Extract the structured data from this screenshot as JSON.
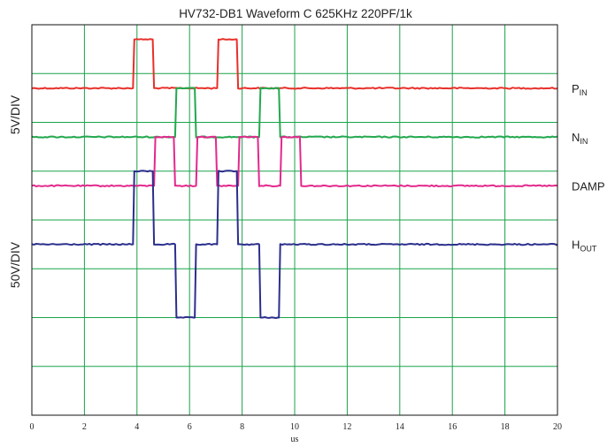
{
  "chart_data": {
    "type": "line",
    "title": "HV732-DB1 Waveform C 625KHz 220PF/1k",
    "xlabel": "us",
    "xlim": [
      0,
      20
    ],
    "x_ticks": [
      "0",
      "2",
      "4",
      "6",
      "8",
      "10",
      "12",
      "14",
      "16",
      "18",
      "20"
    ],
    "grid": true,
    "grid_divisions": {
      "x": 10,
      "y": 8
    },
    "y_scale_labels": [
      {
        "text": "5V/DIV",
        "applies_to": [
          "P_IN",
          "N_IN"
        ]
      },
      {
        "text": "50V/DIV",
        "applies_to": [
          "DAMP",
          "H_OUT"
        ]
      }
    ],
    "y_units": "divisions from top (0 = top, 8 = bottom)",
    "series": [
      {
        "name": "P_IN",
        "label_main": "P",
        "label_sub": "IN",
        "color": "#e8302a",
        "low_div": 1.3,
        "high_div": 0.3,
        "pulses": [
          {
            "level": "high",
            "start": 3.85,
            "end": 4.65
          },
          {
            "level": "high",
            "start": 7.05,
            "end": 7.85
          }
        ]
      },
      {
        "name": "N_IN",
        "label_main": "N",
        "label_sub": "IN",
        "color": "#22a84e",
        "low_div": 2.3,
        "high_div": 1.3,
        "pulses": [
          {
            "level": "high",
            "start": 5.45,
            "end": 6.25
          },
          {
            "level": "high",
            "start": 8.65,
            "end": 9.45
          }
        ]
      },
      {
        "name": "DAMP",
        "label_main": "DAMP",
        "label_sub": "",
        "color": "#e3288c",
        "low_div": 3.3,
        "high_div": 2.3,
        "pulses": [
          {
            "level": "high",
            "start": 4.65,
            "end": 5.45
          },
          {
            "level": "high",
            "start": 6.25,
            "end": 7.05
          },
          {
            "level": "high",
            "start": 7.85,
            "end": 8.65
          },
          {
            "level": "high",
            "start": 9.45,
            "end": 10.25
          }
        ]
      },
      {
        "name": "H_OUT",
        "label_main": "H",
        "label_sub": "OUT",
        "color": "#2b2f8c",
        "low_div": 6.0,
        "mid_div": 4.5,
        "high_div": 3.0,
        "pulses": [
          {
            "level": "high",
            "start": 3.85,
            "end": 4.65
          },
          {
            "level": "low",
            "start": 5.45,
            "end": 6.25
          },
          {
            "level": "high",
            "start": 7.05,
            "end": 7.85
          },
          {
            "level": "low",
            "start": 8.65,
            "end": 9.45
          }
        ]
      }
    ]
  }
}
